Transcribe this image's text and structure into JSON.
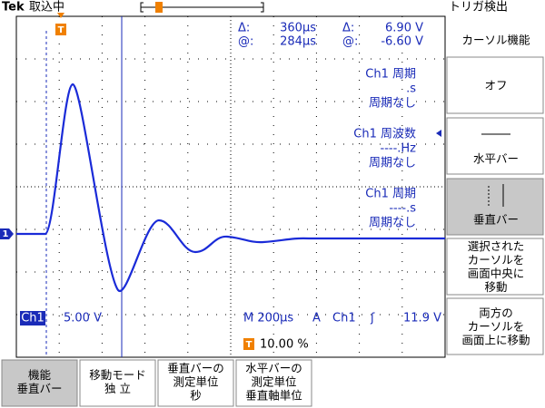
{
  "status": {
    "brand": "Tek",
    "state": "取込中",
    "trigger_state": "トリガ検出"
  },
  "markers": {
    "trigger": "T",
    "channel": "1"
  },
  "cursor_readout": {
    "delta_time_symbol": "Δ:",
    "delta_time": "360µs",
    "pos_time_symbol": "@:",
    "pos_time": "284µs",
    "delta_volt_symbol": "Δ:",
    "delta_volt": "6.90 V",
    "pos_volt_symbol": "@:",
    "pos_volt": "-6.60 V"
  },
  "measurements": [
    {
      "title": "Ch1 周期",
      "value": ".s",
      "status": "周期なし"
    },
    {
      "title": "Ch1 周波数",
      "value": "----.Hz",
      "status": "周期なし"
    },
    {
      "title": "Ch1 周期",
      "value": "----.s",
      "status": "周期なし"
    }
  ],
  "settings": {
    "channel": "Ch1",
    "volts_per_div": "5.00 V",
    "timebase": "M 200µs",
    "trigger_mode": "A",
    "trigger_source": "Ch1",
    "trigger_slope": "ʃ",
    "trigger_level": "11.9 V",
    "trigger_marker": "T",
    "trigger_position": "10.00 %"
  },
  "side_menu": {
    "title": "カーソル機能",
    "items": [
      {
        "lines": [
          "オフ"
        ],
        "selected": false
      },
      {
        "lines": [
          "水平バー"
        ],
        "selected": false
      },
      {
        "lines": [
          "垂直バー"
        ],
        "selected": true
      },
      {
        "lines": [
          "選択された",
          "カーソルを",
          "画面中央に",
          "移動"
        ],
        "selected": false
      },
      {
        "lines": [
          "両方の",
          "カーソルを",
          "画面上に移動"
        ],
        "selected": false
      }
    ]
  },
  "bottom_menu": [
    {
      "lines": [
        "機能",
        "垂直バー"
      ],
      "selected": true
    },
    {
      "lines": [
        "移動モード",
        "独 立"
      ],
      "selected": false
    },
    {
      "lines": [
        "垂直バーの",
        "測定単位",
        "秒"
      ],
      "selected": false
    },
    {
      "lines": [
        "水平バーの",
        "測定単位",
        "垂直軸単位"
      ],
      "selected": false
    }
  ]
}
